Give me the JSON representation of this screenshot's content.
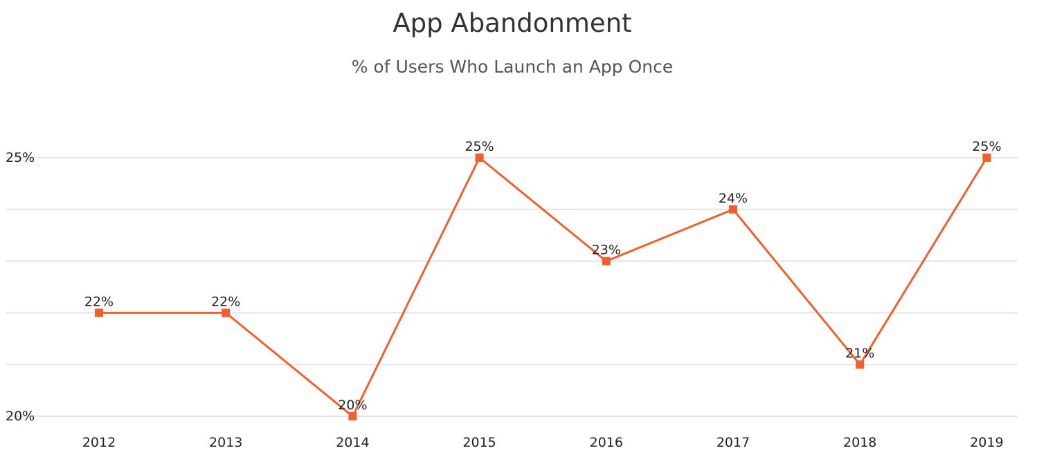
{
  "chart_data": {
    "type": "line",
    "title": "App Abandonment",
    "subtitle": "% of Users Who Launch an App Once",
    "xlabel": "",
    "ylabel": "",
    "categories": [
      "2012",
      "2013",
      "2014",
      "2015",
      "2016",
      "2017",
      "2018",
      "2019"
    ],
    "series": [
      {
        "values": [
          22,
          22,
          20,
          25,
          23,
          24,
          21,
          25
        ],
        "data_labels": [
          "22%",
          "22%",
          "20%",
          "25%",
          "23%",
          "24%",
          "21%",
          "25%"
        ]
      }
    ],
    "ylim": [
      20,
      25
    ],
    "yticks": [
      20,
      25
    ],
    "ytick_labels": [
      "20%",
      "25%"
    ],
    "grid": true,
    "legend": "none",
    "colors": {
      "line": "#f0602f",
      "grid": "#e4e4e4",
      "text": "#222222"
    }
  }
}
